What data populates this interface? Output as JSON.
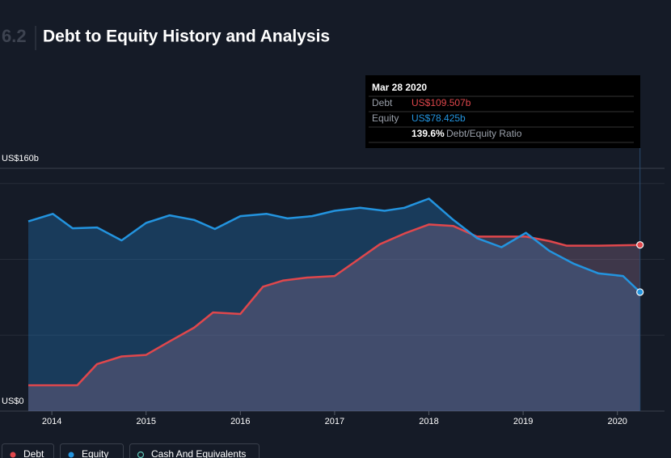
{
  "chart_data": {
    "type": "area",
    "section": "6.2",
    "title": "Debt to Equity History and Analysis",
    "xlim": [
      2013.45,
      2020.5
    ],
    "xticks": [
      2014,
      2015,
      2016,
      2017,
      2018,
      2019,
      2020
    ],
    "ylim": [
      0,
      160
    ],
    "yticks": [
      {
        "value": 0,
        "label": "US$0"
      },
      {
        "value": 160,
        "label": "US$160b"
      }
    ],
    "grid_values": [
      50,
      100,
      150
    ],
    "series": [
      {
        "name": "Debt",
        "color": "#e0474c",
        "x": [
          2013.75,
          2014.27,
          2014.48,
          2014.74,
          2015.0,
          2015.25,
          2015.51,
          2015.71,
          2016.0,
          2016.24,
          2016.45,
          2016.71,
          2017.0,
          2017.23,
          2017.48,
          2017.74,
          2018.0,
          2018.26,
          2018.51,
          2018.77,
          2019.03,
          2019.28,
          2019.46,
          2019.8,
          2020.24
        ],
        "values": [
          17,
          17,
          31,
          36,
          37,
          46,
          55,
          65,
          64,
          82,
          86,
          88,
          89,
          99,
          110,
          117,
          123,
          122,
          115,
          115,
          115,
          112,
          109,
          109,
          109.507
        ]
      },
      {
        "name": "Equity",
        "color": "#2394df",
        "x": [
          2013.75,
          2014.01,
          2014.22,
          2014.48,
          2014.74,
          2015.0,
          2015.25,
          2015.51,
          2015.73,
          2016.0,
          2016.28,
          2016.5,
          2016.76,
          2017.0,
          2017.27,
          2017.53,
          2017.74,
          2018.0,
          2018.26,
          2018.51,
          2018.77,
          2019.03,
          2019.28,
          2019.54,
          2019.8,
          2020.06,
          2020.24
        ],
        "values": [
          125,
          130,
          120.5,
          121,
          112.5,
          124,
          129,
          126,
          120,
          128.5,
          130,
          127,
          128.5,
          132,
          134,
          132,
          134,
          140,
          126,
          114,
          108,
          117.5,
          105.5,
          97,
          90.7,
          89,
          78.425
        ]
      },
      {
        "name": "Cash And Equivalents",
        "color": "#5ec4b6",
        "x": [],
        "values": []
      }
    ],
    "tooltip": {
      "date": "Mar 28 2020",
      "rows": [
        {
          "label": "Debt",
          "value": "US$109.507b"
        },
        {
          "label": "Equity",
          "value": "US$78.425b"
        }
      ],
      "ratio": "139.6%",
      "ratio_label": "Debt/Equity Ratio"
    }
  }
}
